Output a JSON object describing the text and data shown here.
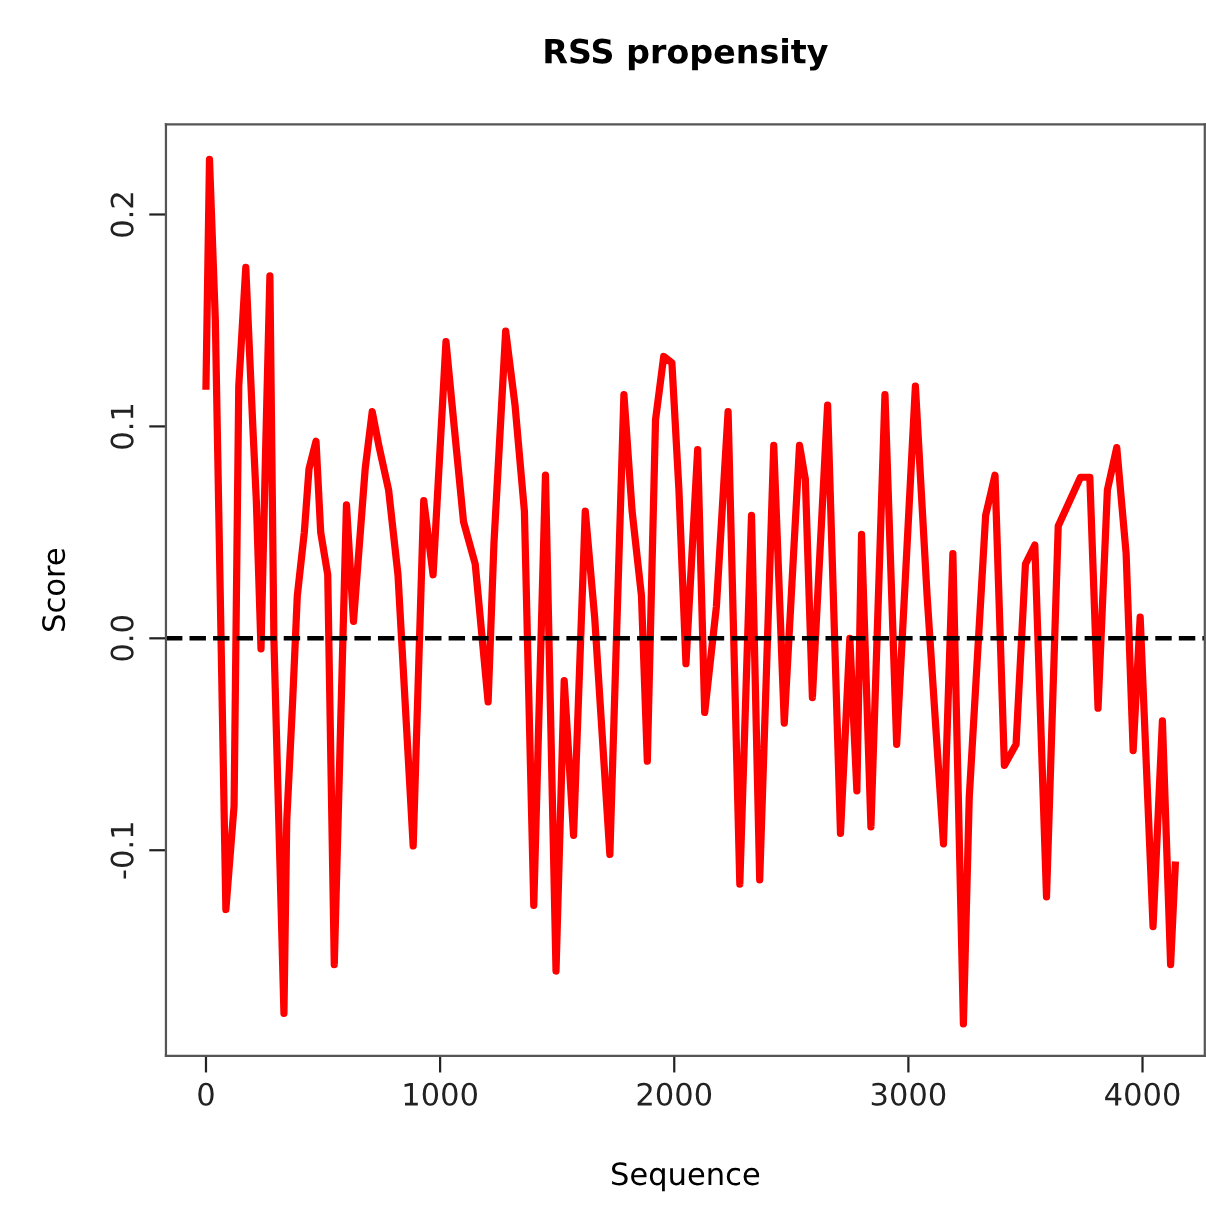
{
  "chart_data": {
    "type": "line",
    "title": "RSS propensity",
    "xlabel": "Sequence",
    "ylabel": "Score",
    "xlim": [
      -171,
      4266
    ],
    "ylim": [
      -0.197,
      0.2425
    ],
    "xticks": [
      0,
      1000,
      2000,
      3000,
      4000
    ],
    "yticks": [
      {
        "value": -0.1,
        "label": "-0.1"
      },
      {
        "value": 0.0,
        "label": "0.0"
      },
      {
        "value": 0.1,
        "label": "0.1"
      },
      {
        "value": 0.2,
        "label": "0.2"
      }
    ],
    "grid": false,
    "legend": false,
    "marker": "none",
    "line_style": "solid",
    "ref_lines": [
      {
        "axis": "y",
        "value": 0,
        "label": null,
        "color": "#000000",
        "line_style": "dashed"
      }
    ],
    "series": [
      {
        "color": "#ff0000",
        "x": [
          0,
          15,
          40,
          85,
          120,
          140,
          170,
          200,
          215,
          235,
          255,
          273,
          290,
          333,
          345,
          370,
          390,
          420,
          440,
          470,
          490,
          520,
          548,
          600,
          630,
          680,
          710,
          740,
          780,
          820,
          885,
          930,
          970,
          1025,
          1060,
          1100,
          1150,
          1205,
          1230,
          1280,
          1320,
          1360,
          1400,
          1450,
          1495,
          1530,
          1570,
          1620,
          1660,
          1725,
          1785,
          1820,
          1860,
          1885,
          1920,
          1955,
          1990,
          2020,
          2050,
          2100,
          2130,
          2180,
          2230,
          2280,
          2330,
          2365,
          2425,
          2470,
          2535,
          2560,
          2590,
          2655,
          2710,
          2750,
          2780,
          2800,
          2840,
          2900,
          2950,
          3030,
          3080,
          3150,
          3190,
          3235,
          3260,
          3330,
          3370,
          3410,
          3460,
          3500,
          3540,
          3590,
          3640,
          3735,
          3775,
          3810,
          3850,
          3890,
          3930,
          3960,
          3990,
          4045,
          4085,
          4120,
          4140
        ],
        "values": [
          0.119,
          0.226,
          0.15,
          -0.128,
          -0.079,
          0.119,
          0.175,
          0.1,
          0.065,
          -0.005,
          0.09,
          0.171,
          0.0,
          -0.177,
          -0.086,
          -0.03,
          0.02,
          0.05,
          0.08,
          0.093,
          0.05,
          0.03,
          -0.154,
          0.063,
          0.008,
          0.08,
          0.107,
          0.09,
          0.07,
          0.03,
          -0.098,
          0.065,
          0.03,
          0.14,
          0.1,
          0.055,
          0.035,
          -0.03,
          0.045,
          0.145,
          0.11,
          0.06,
          -0.126,
          0.077,
          -0.157,
          -0.02,
          -0.093,
          0.06,
          0.01,
          -0.102,
          0.115,
          0.06,
          0.02,
          -0.058,
          0.103,
          0.133,
          0.13,
          0.07,
          -0.012,
          0.089,
          -0.035,
          0.015,
          0.107,
          -0.116,
          0.058,
          -0.114,
          0.091,
          -0.04,
          0.091,
          0.075,
          -0.028,
          0.11,
          -0.092,
          0.0,
          -0.072,
          0.049,
          -0.089,
          0.115,
          -0.05,
          0.119,
          0.02,
          -0.097,
          0.04,
          -0.182,
          -0.075,
          0.058,
          0.077,
          -0.06,
          -0.05,
          0.035,
          0.044,
          -0.122,
          0.053,
          0.076,
          0.076,
          -0.033,
          0.07,
          0.09,
          0.04,
          -0.053,
          0.01,
          -0.136,
          -0.039,
          -0.154,
          -0.107
        ]
      }
    ]
  }
}
